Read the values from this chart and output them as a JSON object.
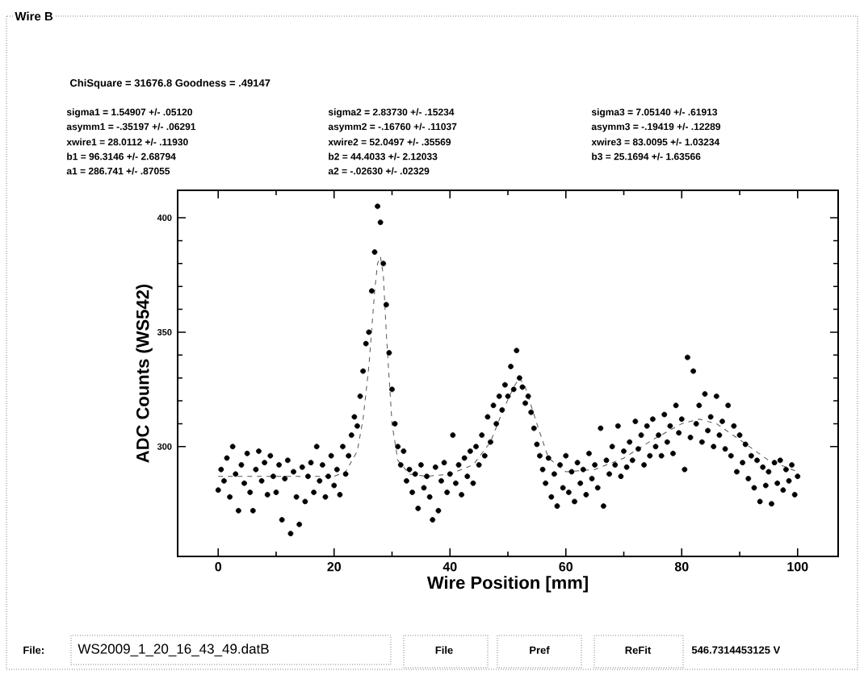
{
  "chart_data": {
    "type": "scatter",
    "title": "Wire B",
    "xlabel": "Wire Position [mm]",
    "ylabel": "ADC Counts (WS542)",
    "xlim": [
      -7,
      107
    ],
    "ylim": [
      252,
      412
    ],
    "xticks": [
      0,
      20,
      40,
      60,
      80,
      100
    ],
    "yticks": [
      300,
      350,
      400
    ],
    "grid": false,
    "series": [
      {
        "color": "#000000",
        "marker": "circle",
        "x": [
          0,
          0.5,
          1,
          1.5,
          2,
          2.5,
          3,
          3.5,
          4,
          4.5,
          5,
          5.5,
          6,
          6.5,
          7,
          7.5,
          8,
          8.5,
          9,
          9.5,
          10,
          10.5,
          11,
          11.5,
          12,
          12.5,
          13,
          13.5,
          14,
          14.5,
          15,
          15.5,
          16,
          16.5,
          17,
          17.5,
          18,
          18.5,
          19,
          19.5,
          20,
          20.5,
          21,
          21.5,
          22,
          22.5,
          23,
          23.5,
          24,
          24.5,
          25,
          25.5,
          26,
          26.5,
          27,
          27.5,
          28,
          28.5,
          29,
          29.5,
          30,
          30.5,
          31,
          31.5,
          32,
          32.5,
          33,
          33.5,
          34,
          34.5,
          35,
          35.5,
          36,
          36.5,
          37,
          37.5,
          38,
          38.5,
          39,
          39.5,
          40,
          40.5,
          41,
          41.5,
          42,
          42.5,
          43,
          43.5,
          44,
          44.5,
          45,
          45.5,
          46,
          46.5,
          47,
          47.5,
          48,
          48.5,
          49,
          49.5,
          50,
          50.5,
          51,
          51.5,
          52,
          52.5,
          53,
          53.5,
          54,
          54.5,
          55,
          55.5,
          56,
          56.5,
          57,
          57.5,
          58,
          58.5,
          59,
          59.5,
          60,
          60.5,
          61,
          61.5,
          62,
          62.5,
          63,
          63.5,
          64,
          64.5,
          65,
          65.5,
          66,
          66.5,
          67,
          67.5,
          68,
          68.5,
          69,
          69.5,
          70,
          70.5,
          71,
          71.5,
          72,
          72.5,
          73,
          73.5,
          74,
          74.5,
          75,
          75.5,
          76,
          76.5,
          77,
          77.5,
          78,
          78.5,
          79,
          79.5,
          80,
          80.5,
          81,
          81.5,
          82,
          82.5,
          83,
          83.5,
          84,
          84.5,
          85,
          85.5,
          86,
          86.5,
          87,
          87.5,
          88,
          88.5,
          89,
          89.5,
          90,
          90.5,
          91,
          91.5,
          92,
          92.5,
          93,
          93.5,
          94,
          94.5,
          95,
          95.5,
          96,
          96.5,
          97,
          97.5,
          98,
          98.5,
          99,
          99.5,
          100
        ],
        "values": [
          281,
          290,
          285,
          295,
          278,
          300,
          288,
          272,
          292,
          284,
          297,
          280,
          272,
          290,
          298,
          285,
          293,
          279,
          296,
          287,
          280,
          292,
          268,
          286,
          294,
          262,
          289,
          278,
          266,
          291,
          276,
          287,
          293,
          280,
          300,
          285,
          292,
          278,
          287,
          296,
          283,
          290,
          279,
          300,
          288,
          296,
          305,
          313,
          309,
          322,
          333,
          345,
          350,
          368,
          385,
          405,
          398,
          380,
          362,
          341,
          325,
          310,
          300,
          292,
          298,
          285,
          290,
          280,
          288,
          273,
          292,
          282,
          287,
          278,
          268,
          291,
          272,
          285,
          293,
          280,
          288,
          305,
          284,
          292,
          279,
          295,
          287,
          298,
          284,
          300,
          292,
          305,
          296,
          313,
          302,
          318,
          310,
          322,
          316,
          327,
          322,
          335,
          325,
          342,
          330,
          326,
          319,
          322,
          315,
          308,
          301,
          296,
          290,
          284,
          295,
          278,
          288,
          274,
          292,
          282,
          296,
          280,
          289,
          276,
          293,
          284,
          290,
          279,
          297,
          286,
          292,
          282,
          308,
          274,
          294,
          288,
          300,
          292,
          309,
          287,
          298,
          291,
          302,
          294,
          311,
          299,
          305,
          292,
          309,
          296,
          312,
          300,
          305,
          296,
          314,
          302,
          309,
          297,
          318,
          306,
          312,
          290,
          339,
          304,
          333,
          310,
          318,
          302,
          323,
          307,
          313,
          300,
          322,
          305,
          311,
          299,
          318,
          296,
          309,
          289,
          305,
          293,
          301,
          286,
          296,
          282,
          294,
          276,
          291,
          283,
          289,
          275,
          293,
          284,
          294,
          281,
          290,
          285,
          292,
          279,
          287
        ]
      },
      {
        "type": "line",
        "color": "#555555",
        "line_style": "dashed",
        "marker": "none",
        "x": [
          0,
          10,
          20,
          22,
          24,
          25,
          26,
          27,
          27.5,
          28,
          28.5,
          29,
          30,
          31,
          33,
          36,
          40,
          44,
          47,
          49,
          51,
          52,
          53,
          55,
          57,
          60,
          65,
          70,
          75,
          80,
          83,
          86,
          90,
          95,
          100
        ],
        "values": [
          287,
          287,
          287,
          289,
          298,
          312,
          335,
          368,
          380,
          383,
          375,
          350,
          310,
          294,
          288,
          287,
          288,
          292,
          302,
          315,
          326,
          330,
          326,
          310,
          295,
          289,
          290,
          295,
          303,
          310,
          312,
          310,
          303,
          294,
          289
        ]
      }
    ],
    "annotations": [
      "ChiSquare = 31676.8  Goodness = .49147",
      "sigma1 = 1.54907 +/- .05120",
      "asymm1 = -.35197 +/- .06291",
      "xwire1 = 28.0112 +/- .11930",
      "b1 = 96.3146 +/- 2.68794",
      "a1 = 286.741 +/- .87055",
      "sigma2 = 2.83730 +/- .15234",
      "asymm2 = -.16760 +/- .11037",
      "xwire2 = 52.0497 +/- .35569",
      "b2 = 44.4033 +/- 2.12033",
      "a2 = -.02630 +/- .02329",
      "sigma3 = 7.05140 +/- .61913",
      "asymm3 = -.19419 +/- .12289",
      "xwire3 = 83.0095 +/- 1.03234",
      "b3 = 25.1694 +/- 1.63566",
      "File:",
      "WS2009_1_20_16_43_49.datB",
      "File",
      "Pref",
      "ReFit",
      "546.7314453125 V"
    ]
  }
}
